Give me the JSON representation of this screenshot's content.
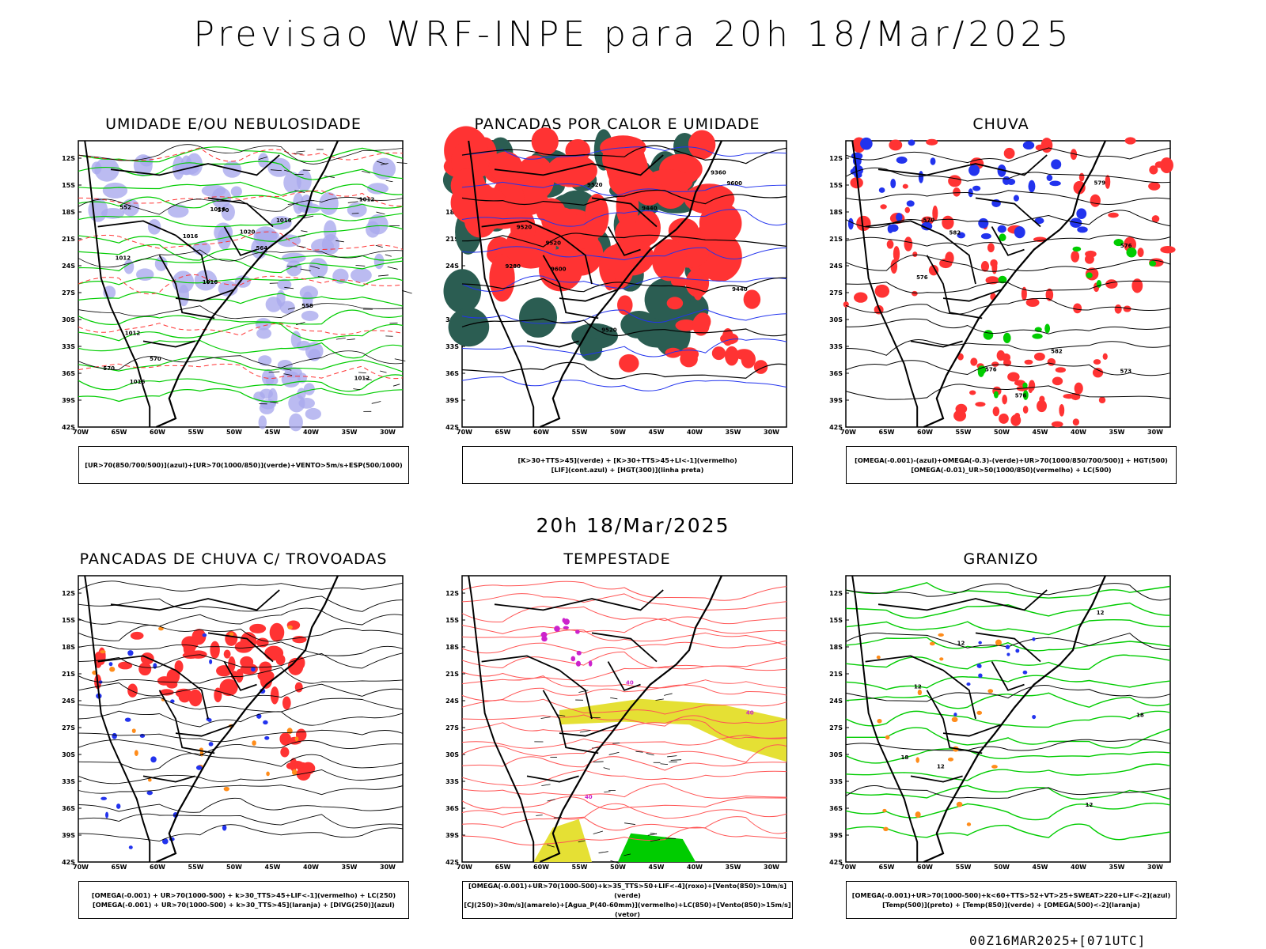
{
  "header": {
    "title": "Previsao WRF-INPE  para 20h 18/Mar/2025"
  },
  "middle": {
    "title": "20h 18/Mar/2025"
  },
  "footer": {
    "run_label": "00Z16MAR2025+[071UTC]"
  },
  "axes": {
    "lat_labels": [
      "12S",
      "15S",
      "18S",
      "21S",
      "24S",
      "27S",
      "30S",
      "33S",
      "36S",
      "39S",
      "42S"
    ],
    "lon_labels": [
      "70W",
      "65W",
      "60W",
      "55W",
      "50W",
      "45W",
      "40W",
      "35W",
      "30W"
    ]
  },
  "panels": [
    {
      "title": "UMIDADE E/OU NEBULOSIDADE",
      "legend": [
        "[UR>70(850/700/500)](azul)+[UR>70(1000/850)](verde)+VENTO>5m/s+ESP(500/1000)"
      ],
      "labels": [
        "1012",
        "1012",
        "1012",
        "1016",
        "1016",
        "1016",
        "1016",
        "1020",
        "1012",
        "1016",
        "570",
        "570",
        "570",
        "564",
        "558",
        "552"
      ]
    },
    {
      "title": "PANCADAS POR CALOR E UMIDADE",
      "legend": [
        "[K>30+TTS>45](verde) + [K>30+TTS>45+LI<-1](vermelho)",
        "[LIF](cont.azul) + [HGT(300)](linha preta)"
      ],
      "labels": [
        "9600",
        "9520",
        "9520",
        "9520",
        "9600",
        "9520",
        "9440",
        "9360",
        "9280",
        "9440"
      ]
    },
    {
      "title": "CHUVA",
      "legend": [
        "[OMEGA(-0.001)-(azul)+OMEGA(-0.3)-(verde)+UR>70(1000/850/700/500)] + HGT(500)",
        "[OMEGA(-0.01)_UR>50(1000/850)(vermelho) + LC(500)"
      ],
      "labels": [
        "582",
        "576",
        "576",
        "576",
        "573",
        "570",
        "582",
        "579",
        "576"
      ]
    },
    {
      "title": "PANCADAS DE CHUVA C/ TROVOADAS",
      "legend": [
        "[OMEGA(-0.001) + UR>70(1000-500) + k>30_TTS>45+LIF<-1](vermelho) + LC(250)",
        "[OMEGA(-0.001) + UR>70(1000-500) + k>30_TTS>45](laranja) + [DIVG(250)](azul)"
      ],
      "labels": []
    },
    {
      "title": "TEMPESTADE",
      "legend": [
        "[OMEGA(-0.001)+UR>70(1000-500)+k>35_TTS>50+LIF<-4](roxo)+[Vento(850)>10m/s](verde)",
        "[CJ(250)>30m/s](amarelo)+[Agua_P(40-60mm)](vermelho)+LC(850)+[Vento(850)>15m/s](vetor)"
      ],
      "labels": [
        "40",
        "40",
        "40"
      ]
    },
    {
      "title": "GRANIZO",
      "legend": [
        "[OMEGA(-0.001)+UR>70(1000-500)+k<60+TTS>52+VT>25+SWEAT>220+LIF<-2](azul)",
        "[Temp(500)](preto) + [Temp(850)](verde) + [OMEGA(500)<-2](laranja)"
      ],
      "labels": [
        "12",
        "12",
        "12",
        "12",
        "12",
        "18",
        "18"
      ]
    }
  ],
  "colors": {
    "red": "#ff3333",
    "green": "#00cc00",
    "blue": "#2233ee",
    "lavender": "#aaaaee",
    "darkgreen": "#2b5d52",
    "yellow": "#e5e034",
    "orange": "#ff8c1a",
    "purple": "#cc22cc",
    "salmon": "#ff5555",
    "black": "#000000"
  }
}
